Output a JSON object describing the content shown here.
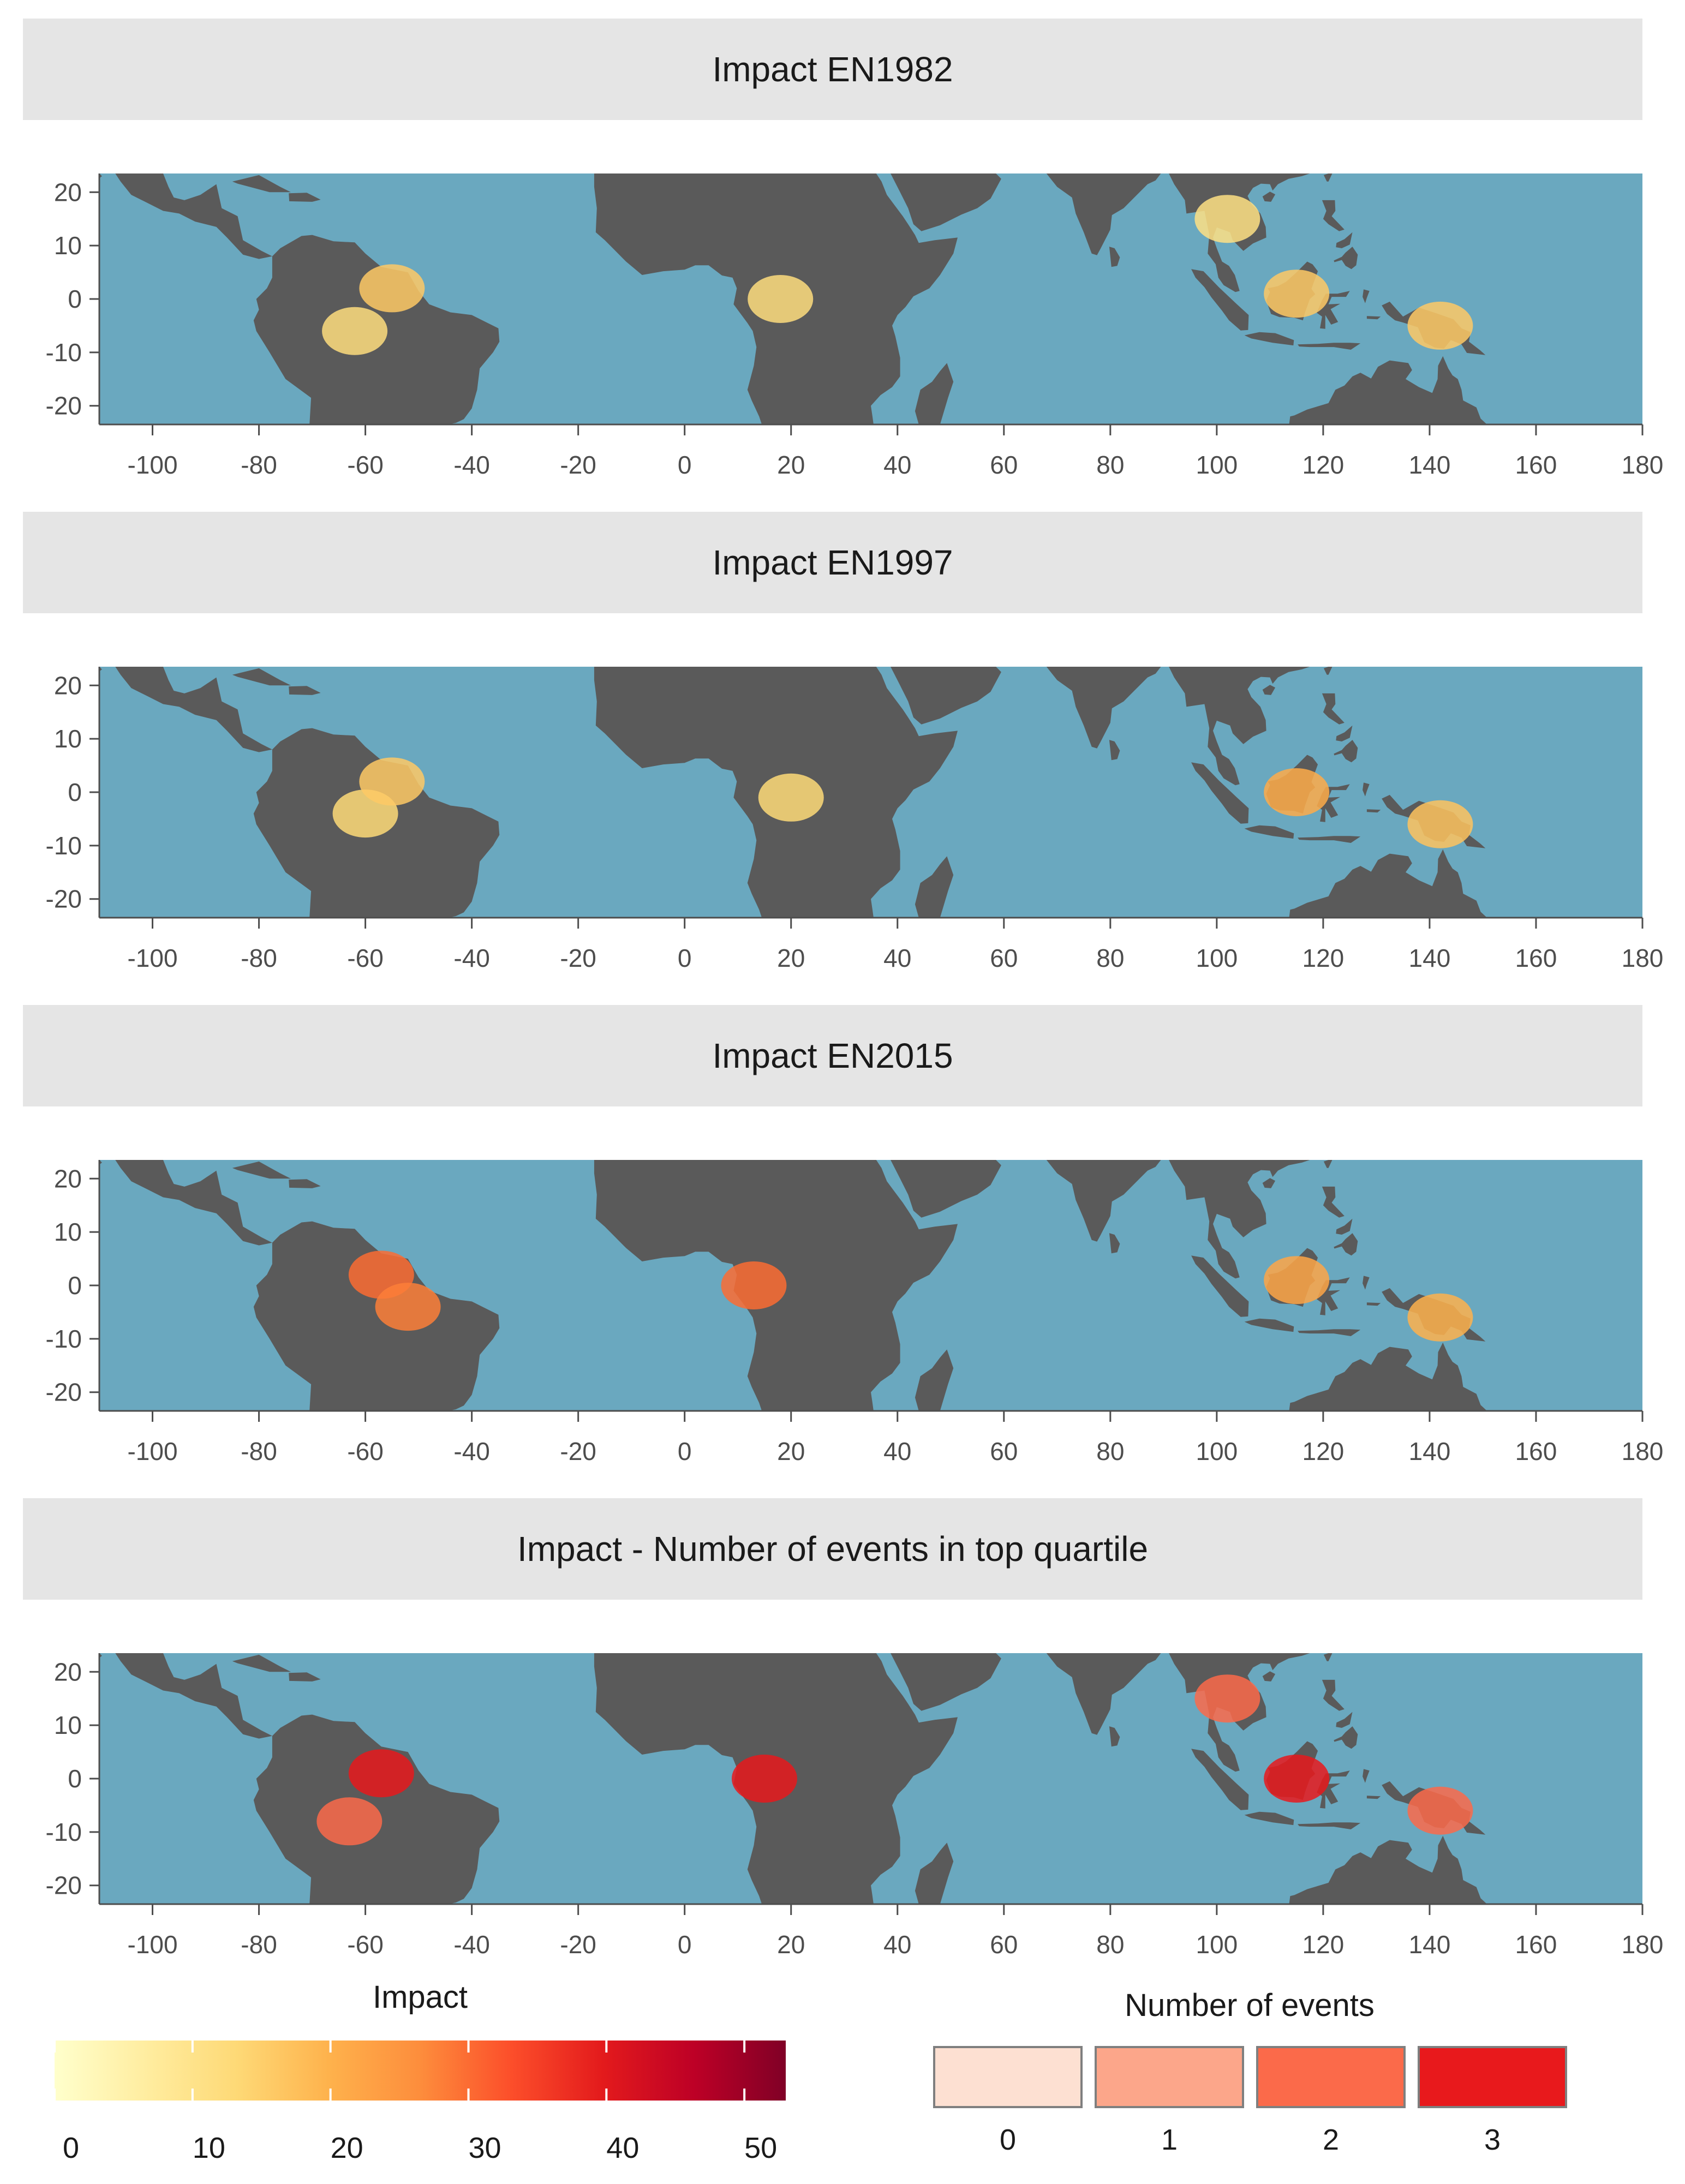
{
  "chart_data": [
    {
      "type": "heatmap",
      "title": "Impact EN1982",
      "x_ticks": [
        "-100",
        "-80",
        "-60",
        "-40",
        "-20",
        "0",
        "20",
        "40",
        "60",
        "80",
        "100",
        "120",
        "140",
        "160",
        "180"
      ],
      "y_ticks": [
        "20",
        "10",
        "0",
        "-10",
        "-20"
      ],
      "xlim": [
        -110,
        180
      ],
      "ylim": [
        -23.5,
        23.5
      ],
      "x_tick_values": [
        -100,
        -80,
        -60,
        -40,
        -20,
        0,
        20,
        40,
        60,
        80,
        100,
        120,
        140,
        160,
        180
      ],
      "y_tick_values": [
        20,
        10,
        0,
        -10,
        -20
      ],
      "grid": false,
      "land_color": "#5a5a5a",
      "ocean_color": "#6aa8bf",
      "hotspots": [
        {
          "lon": -62,
          "lat": -6,
          "value": 12
        },
        {
          "lon": -55,
          "lat": 2,
          "value": 16
        },
        {
          "lon": 18,
          "lat": 0,
          "value": 12
        },
        {
          "lon": 115,
          "lat": 1,
          "value": 16
        },
        {
          "lon": 142,
          "lat": -5,
          "value": 16
        },
        {
          "lon": 102,
          "lat": 15,
          "value": 11
        }
      ]
    },
    {
      "type": "heatmap",
      "title": "Impact EN1997",
      "x_ticks": [
        "-100",
        "-80",
        "-60",
        "-40",
        "-20",
        "0",
        "20",
        "40",
        "60",
        "80",
        "100",
        "120",
        "140",
        "160",
        "180"
      ],
      "y_ticks": [
        "20",
        "10",
        "0",
        "-10",
        "-20"
      ],
      "xlim": [
        -110,
        180
      ],
      "ylim": [
        -23.5,
        23.5
      ],
      "x_tick_values": [
        -100,
        -80,
        -60,
        -40,
        -20,
        0,
        20,
        40,
        60,
        80,
        100,
        120,
        140,
        160,
        180
      ],
      "y_tick_values": [
        20,
        10,
        0,
        -10,
        -20
      ],
      "grid": false,
      "land_color": "#5a5a5a",
      "ocean_color": "#6aa8bf",
      "hotspots": [
        {
          "lon": -60,
          "lat": -4,
          "value": 13
        },
        {
          "lon": -55,
          "lat": 2,
          "value": 16
        },
        {
          "lon": 20,
          "lat": -1,
          "value": 13
        },
        {
          "lon": 115,
          "lat": 0,
          "value": 21
        },
        {
          "lon": 142,
          "lat": -6,
          "value": 17
        }
      ]
    },
    {
      "type": "heatmap",
      "title": "Impact EN2015",
      "x_ticks": [
        "-100",
        "-80",
        "-60",
        "-40",
        "-20",
        "0",
        "20",
        "40",
        "60",
        "80",
        "100",
        "120",
        "140",
        "160",
        "180"
      ],
      "y_ticks": [
        "20",
        "10",
        "0",
        "-10",
        "-20"
      ],
      "xlim": [
        -110,
        180
      ],
      "ylim": [
        -23.5,
        23.5
      ],
      "x_tick_values": [
        -100,
        -80,
        -60,
        -40,
        -20,
        0,
        20,
        40,
        60,
        80,
        100,
        120,
        140,
        160,
        180
      ],
      "y_tick_values": [
        20,
        10,
        0,
        -10,
        -20
      ],
      "grid": false,
      "land_color": "#5a5a5a",
      "ocean_color": "#6aa8bf",
      "hotspots": [
        {
          "lon": -57,
          "lat": 2,
          "value": 30
        },
        {
          "lon": -52,
          "lat": -4,
          "value": 28
        },
        {
          "lon": 13,
          "lat": 0,
          "value": 30
        },
        {
          "lon": 115,
          "lat": 1,
          "value": 22
        },
        {
          "lon": 142,
          "lat": -6,
          "value": 20
        }
      ]
    },
    {
      "type": "heatmap",
      "title": "Impact - Number of events in top quartile",
      "x_ticks": [
        "-100",
        "-80",
        "-60",
        "-40",
        "-20",
        "0",
        "20",
        "40",
        "60",
        "80",
        "100",
        "120",
        "140",
        "160",
        "180"
      ],
      "y_ticks": [
        "20",
        "10",
        "0",
        "-10",
        "-20"
      ],
      "xlim": [
        -110,
        180
      ],
      "ylim": [
        -23.5,
        23.5
      ],
      "x_tick_values": [
        -100,
        -80,
        -60,
        -40,
        -20,
        0,
        20,
        40,
        60,
        80,
        100,
        120,
        140,
        160,
        180
      ],
      "y_tick_values": [
        20,
        10,
        0,
        -10,
        -20
      ],
      "grid": false,
      "land_color": "#5a5a5a",
      "ocean_color": "#6aa8bf",
      "hotspots": [
        {
          "lon": -57,
          "lat": 1,
          "count": 3
        },
        {
          "lon": -63,
          "lat": -8,
          "count": 2
        },
        {
          "lon": 15,
          "lat": 0,
          "count": 3
        },
        {
          "lon": 115,
          "lat": 0,
          "count": 3
        },
        {
          "lon": 142,
          "lat": -6,
          "count": 2
        },
        {
          "lon": 102,
          "lat": 15,
          "count": 2
        }
      ]
    }
  ],
  "legend_impact": {
    "title": "Impact",
    "ticks": [
      "0",
      "10",
      "20",
      "30",
      "40",
      "50"
    ],
    "tick_values": [
      0,
      10,
      20,
      30,
      40,
      50
    ],
    "range": [
      0,
      53
    ],
    "colors": [
      "#ffffcc",
      "#ffeda0",
      "#fed976",
      "#feb24c",
      "#fd8d3c",
      "#fc4e2a",
      "#e31a1c",
      "#bd0026",
      "#800026"
    ]
  },
  "legend_events": {
    "title": "Number of events",
    "labels": [
      "0",
      "1",
      "2",
      "3"
    ],
    "colors": [
      "#fde0d2",
      "#fca68a",
      "#fb6a4a",
      "#e8191c"
    ]
  }
}
